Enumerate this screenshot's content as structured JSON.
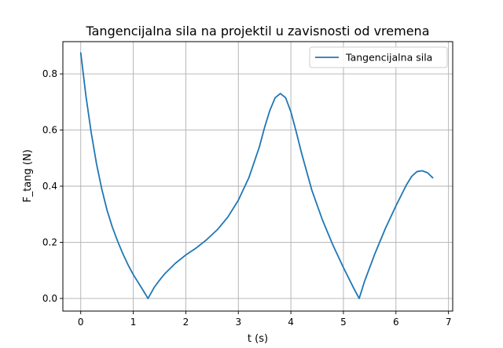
{
  "chart_data": {
    "type": "line",
    "title": "Tangencijalna sila na projektil u zavisnosti od vremena",
    "xlabel": "t (s)",
    "ylabel": "F_tang (N)",
    "xlim": [
      -0.34,
      7.08
    ],
    "ylim": [
      -0.045,
      0.915
    ],
    "xticks": [
      0,
      1,
      2,
      3,
      4,
      5,
      6,
      7
    ],
    "yticks": [
      0.0,
      0.2,
      0.4,
      0.6,
      0.8
    ],
    "xtick_labels": [
      "0",
      "1",
      "2",
      "3",
      "4",
      "5",
      "6",
      "7"
    ],
    "ytick_labels": [
      "0.0",
      "0.2",
      "0.4",
      "0.6",
      "0.8"
    ],
    "grid": true,
    "legend": "upper right",
    "series": [
      {
        "name": "Tangencijalna sila",
        "color": "#1f77b4",
        "x": [
          0.0,
          0.1,
          0.2,
          0.3,
          0.4,
          0.5,
          0.6,
          0.7,
          0.8,
          0.9,
          1.0,
          1.1,
          1.2,
          1.28,
          1.4,
          1.5,
          1.6,
          1.8,
          2.0,
          2.2,
          2.4,
          2.6,
          2.8,
          3.0,
          3.2,
          3.4,
          3.5,
          3.6,
          3.7,
          3.8,
          3.9,
          4.0,
          4.1,
          4.2,
          4.4,
          4.6,
          4.8,
          5.0,
          5.2,
          5.3,
          5.4,
          5.6,
          5.8,
          6.0,
          6.2,
          6.3,
          6.4,
          6.5,
          6.6,
          6.7
        ],
        "y": [
          0.875,
          0.72,
          0.59,
          0.48,
          0.39,
          0.315,
          0.255,
          0.205,
          0.16,
          0.12,
          0.085,
          0.055,
          0.025,
          0.0,
          0.04,
          0.065,
          0.088,
          0.125,
          0.155,
          0.18,
          0.21,
          0.245,
          0.29,
          0.35,
          0.43,
          0.54,
          0.61,
          0.67,
          0.715,
          0.73,
          0.715,
          0.665,
          0.595,
          0.52,
          0.385,
          0.28,
          0.19,
          0.11,
          0.035,
          0.0,
          0.06,
          0.16,
          0.25,
          0.33,
          0.405,
          0.435,
          0.452,
          0.455,
          0.448,
          0.43
        ]
      }
    ]
  }
}
